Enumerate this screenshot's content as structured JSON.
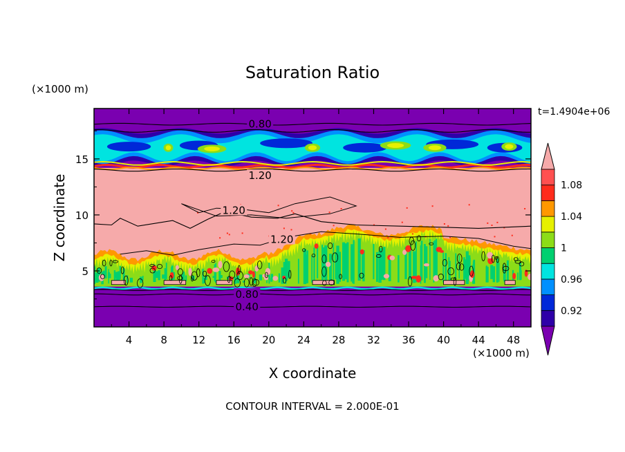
{
  "chart_data": {
    "type": "heatmap",
    "title": "Saturation Ratio",
    "xlabel": "X coordinate",
    "ylabel": "Z coordinate",
    "x_unit": "(×1000 m)",
    "y_unit": "(×1000 m)",
    "time_label": "t=1.4904e+06",
    "footer": "CONTOUR INTERVAL = 2.000E-01",
    "xlim": [
      0,
      50
    ],
    "ylim": [
      0,
      19.5
    ],
    "x_ticks": [
      4,
      8,
      12,
      16,
      20,
      24,
      28,
      32,
      36,
      40,
      44,
      48
    ],
    "y_ticks": [
      5,
      10,
      15
    ],
    "colorbar": {
      "ticks": [
        "1.08",
        "1.04",
        "1",
        "0.96",
        "0.92"
      ],
      "levels": [
        0.9,
        0.92,
        0.94,
        0.96,
        0.98,
        1.0,
        1.02,
        1.04,
        1.06,
        1.08,
        1.1
      ],
      "colors": [
        "#7a00b0",
        "#2e00a8",
        "#0028d8",
        "#0090ff",
        "#00e4e0",
        "#00d070",
        "#8cdc18",
        "#e6f000",
        "#ff9800",
        "#ff2c1c",
        "#ff5050",
        "#f6aaaa"
      ]
    },
    "contour_labels": [
      {
        "text": "0.80",
        "x": 19,
        "z": 18.1
      },
      {
        "text": "1.20",
        "x": 19,
        "z": 13.5
      },
      {
        "text": "1.20",
        "x": 16,
        "z": 10.4
      },
      {
        "text": "1.20",
        "x": 21.5,
        "z": 7.8
      },
      {
        "text": "0.80",
        "x": 17.5,
        "z": 2.9
      },
      {
        "text": "0.40",
        "x": 17.5,
        "z": 1.8
      }
    ],
    "layers": [
      {
        "from": 0,
        "to": 3.6,
        "saturation": 0.4,
        "description_value": "< 0.92"
      },
      {
        "from": 3.6,
        "to": 8.2,
        "saturation": 1.0,
        "description_value": "0.96 - 1.10"
      },
      {
        "from": 8.2,
        "to": 13.8,
        "saturation": 1.2,
        "description_value": "> 1.10"
      },
      {
        "from": 13.8,
        "to": 15.0,
        "saturation": 1.06,
        "description_value": "1.04 - 1.10"
      },
      {
        "from": 15.0,
        "to": 17.4,
        "saturation": 0.95,
        "description_value": "0.92 - 1.00"
      },
      {
        "from": 17.4,
        "to": 19.5,
        "saturation": 0.8,
        "description_value": "< 0.92"
      }
    ]
  }
}
